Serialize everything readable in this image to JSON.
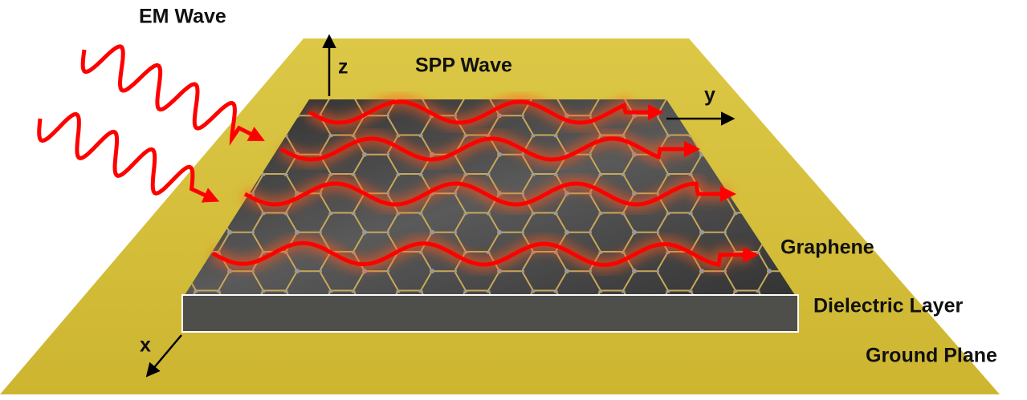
{
  "title": "EM Wave",
  "spp_label": "SPP Wave",
  "axes": {
    "z": "z",
    "y": "y",
    "x": "x"
  },
  "layers": {
    "graphene": "Graphene",
    "dielectric": "Dielectric Layer",
    "ground": "Ground Plane"
  }
}
